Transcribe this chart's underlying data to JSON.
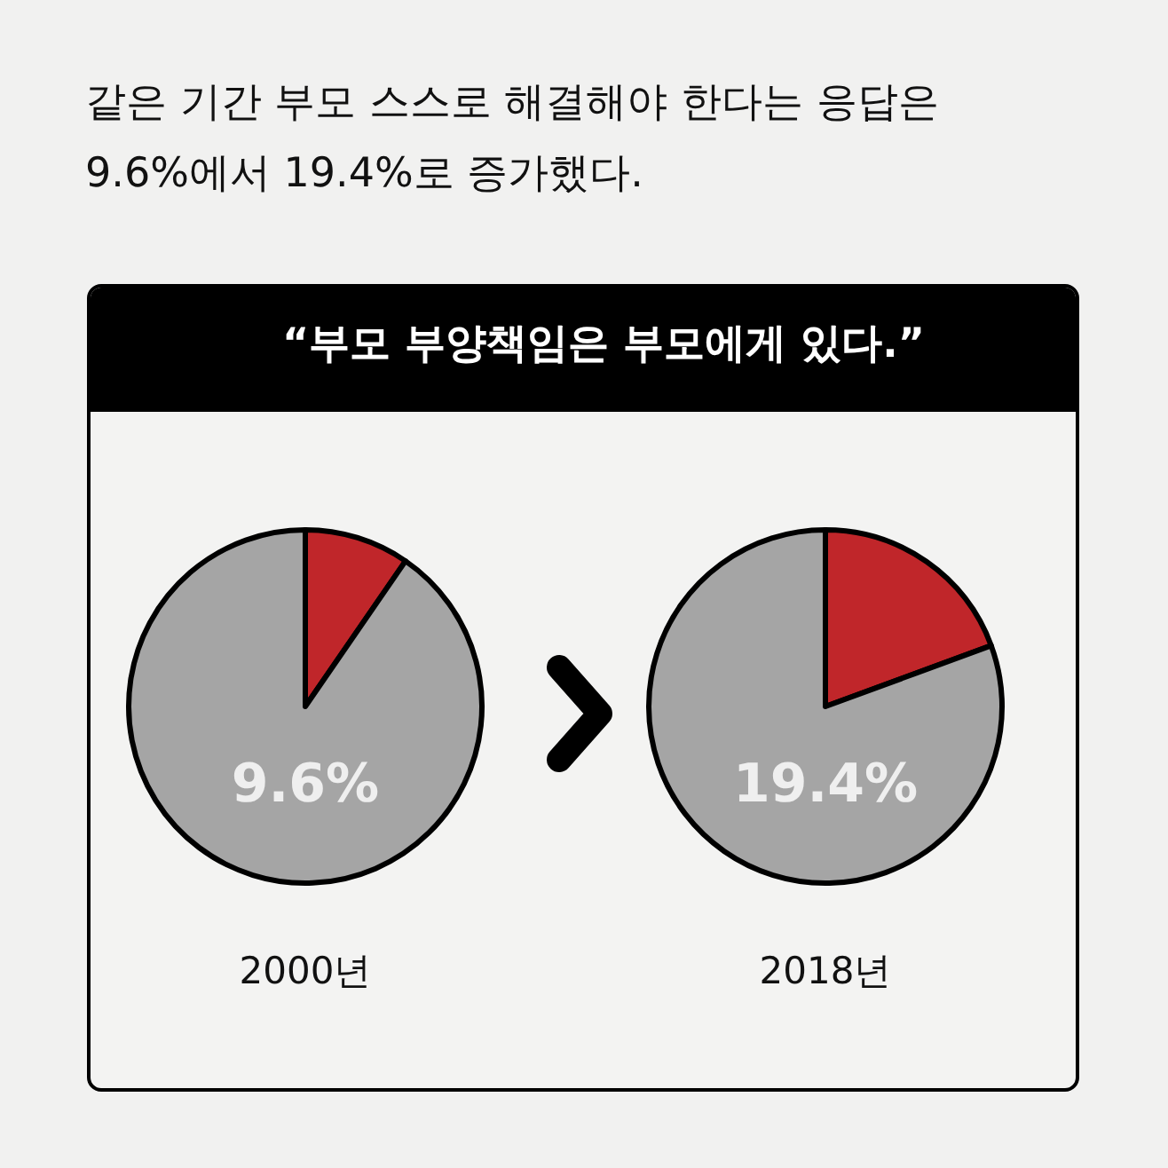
{
  "chart_data": [
    {
      "type": "pie",
      "title": "같은 기간 부모 스스로 해결해야 한다는 응답은 9.6%에서 19.4%로 증가했다.",
      "subtitle": "“부모 부양책임은 부모에게 있다.”",
      "xlabel": "2000년",
      "categories": [
        null,
        null
      ],
      "values": [
        9.6,
        90.4
      ],
      "colors": [
        "#c0262a",
        "#a5a5a5"
      ],
      "annotations": [
        "9.6%"
      ],
      "legend": false
    },
    {
      "type": "pie",
      "xlabel": "2018년",
      "categories": [
        null,
        null
      ],
      "values": [
        19.4,
        80.6
      ],
      "colors": [
        "#c0262a",
        "#a5a5a5"
      ],
      "annotations": [
        "19.4%"
      ],
      "legend": false
    }
  ]
}
